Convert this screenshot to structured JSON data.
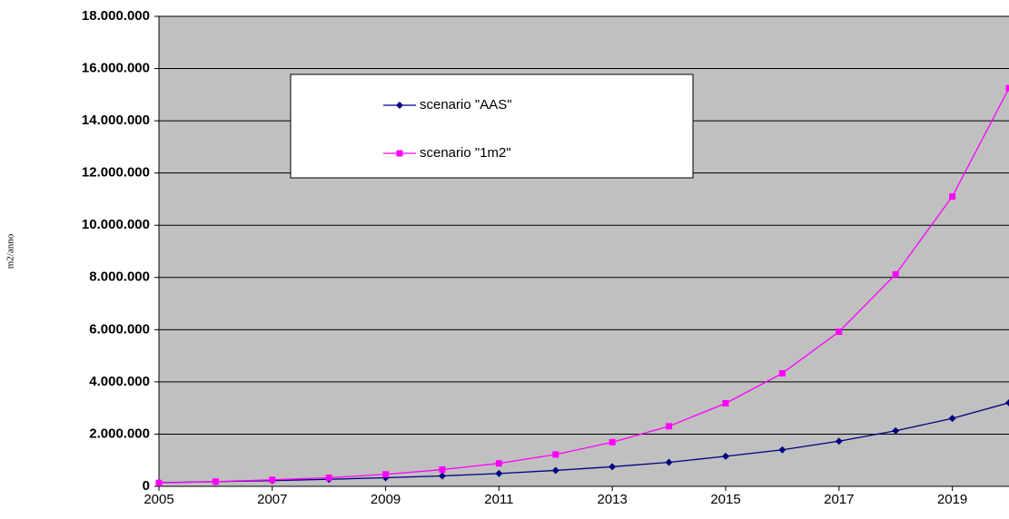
{
  "chart_data": {
    "type": "line",
    "y_label": "m2/anno",
    "x": [
      2005,
      2006,
      2007,
      2008,
      2009,
      2010,
      2011,
      2012,
      2013,
      2014,
      2015,
      2016,
      2017,
      2018,
      2019,
      2020
    ],
    "series": [
      {
        "name": "scenario \"AAS\"",
        "color": "#000080",
        "marker": "diamond",
        "values": [
          140000,
          180000,
          220000,
          270000,
          330000,
          400000,
          490000,
          610000,
          750000,
          920000,
          1150000,
          1400000,
          1730000,
          2130000,
          2600000,
          3200000
        ]
      },
      {
        "name": "scenario \"1m2\"",
        "color": "#ff00ff",
        "marker": "square",
        "values": [
          130000,
          180000,
          250000,
          330000,
          460000,
          640000,
          880000,
          1220000,
          1690000,
          2300000,
          3180000,
          4330000,
          5920000,
          8120000,
          11100000,
          15250000
        ]
      }
    ],
    "xlim": [
      2005,
      2020
    ],
    "xticks": [
      2005,
      2007,
      2009,
      2011,
      2013,
      2015,
      2017,
      2019
    ],
    "ylim": [
      0,
      18000000
    ],
    "yticks": [
      0,
      {
        "value": 2000000,
        "label": "2.000.000"
      },
      {
        "value": 4000000,
        "label": "4.000.000"
      },
      {
        "value": 6000000,
        "label": "6.000.000"
      },
      {
        "value": 8000000,
        "label": "8.000.000"
      },
      {
        "value": 10000000,
        "label": "10.000.000"
      },
      {
        "value": 12000000,
        "label": "12.000.000"
      },
      {
        "value": 14000000,
        "label": "14.000.000"
      },
      {
        "value": 16000000,
        "label": "16.000.000"
      },
      {
        "value": 18000000,
        "label": "18.000.000"
      }
    ],
    "grid": true,
    "plot_background": "#c0c0c0"
  }
}
